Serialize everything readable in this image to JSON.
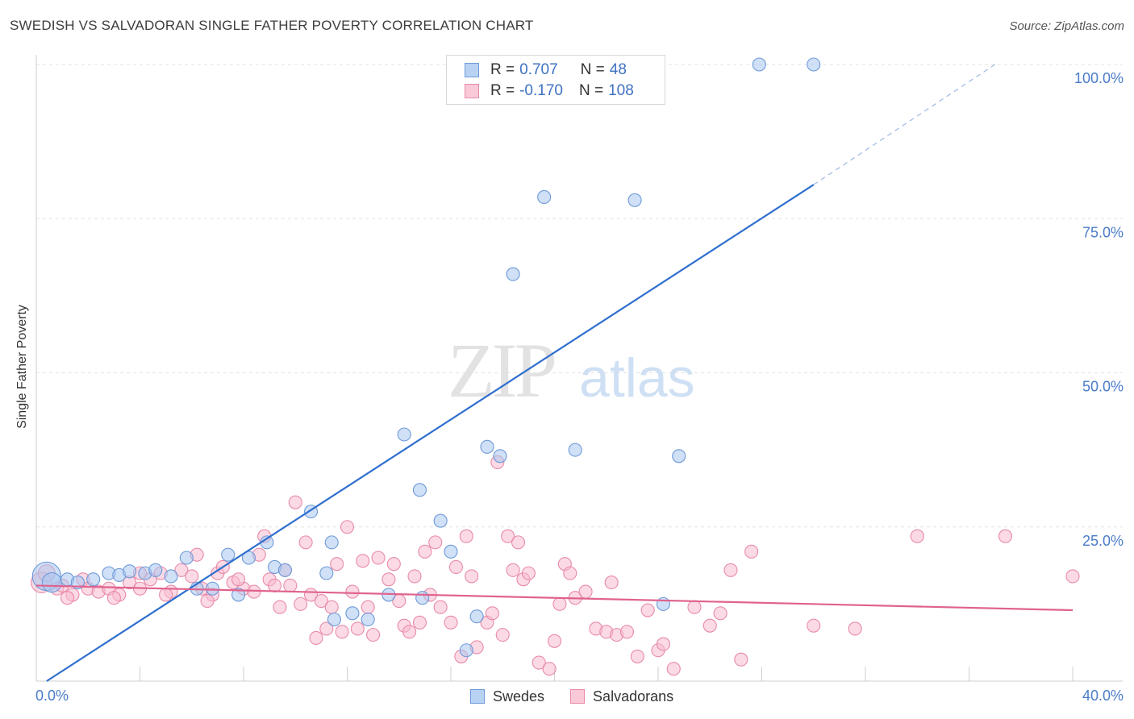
{
  "header": {
    "title": "SWEDISH VS SALVADORAN SINGLE FATHER POVERTY CORRELATION CHART",
    "source": "Source: ZipAtlas.com"
  },
  "watermark": {
    "zip": "ZIP",
    "atlas": "atlas"
  },
  "legend": {
    "rows": [
      {
        "r_label": "R =",
        "r_value": "0.707",
        "n_label": "N =",
        "n_value": "48",
        "color": "#a8c6f0",
        "border": "#6e9ad8"
      },
      {
        "r_label": "R =",
        "r_value": "-0.170",
        "n_label": "N =",
        "n_value": "108",
        "color": "#f7bccf",
        "border": "#e88aa9"
      }
    ]
  },
  "bottom_legend": {
    "items": [
      {
        "label": "Swedes",
        "color": "#b8d2f4",
        "border": "#6e9ad8"
      },
      {
        "label": "Salvadorans",
        "color": "#f9c9d8",
        "border": "#e88aa9"
      }
    ]
  },
  "chart_data": {
    "type": "scatter",
    "title": "SWEDISH VS SALVADORAN SINGLE FATHER POVERTY CORRELATION CHART",
    "xlabel": "",
    "ylabel": "Single Father Poverty",
    "xlim": [
      0,
      40
    ],
    "ylim": [
      0,
      100
    ],
    "x_ticks_labels": [
      "0.0%",
      "40.0%"
    ],
    "y_ticks": [
      25,
      50,
      75,
      100
    ],
    "y_tick_labels": [
      "25.0%",
      "50.0%",
      "75.0%",
      "100.0%"
    ],
    "grid": true,
    "legend_position": "top-center",
    "colors": {
      "swedes_fill": "#a8c6f0",
      "swedes_stroke": "#6e9ad8",
      "swedes_line": "#2f6fce",
      "salv_fill": "#f7bccf",
      "salv_stroke": "#e88aa9",
      "salv_line": "#e0628e"
    },
    "series": [
      {
        "name": "Swedes",
        "points": [
          [
            0.4,
            17.0,
            2.2
          ],
          [
            0.6,
            16.0,
            1.5
          ],
          [
            1.2,
            16.5,
            1
          ],
          [
            1.6,
            16.0,
            1
          ],
          [
            2.2,
            16.5,
            1
          ],
          [
            2.8,
            17.5,
            1
          ],
          [
            3.2,
            17.2,
            1
          ],
          [
            3.6,
            17.8,
            1
          ],
          [
            4.2,
            17.5,
            1
          ],
          [
            4.6,
            18.0,
            1
          ],
          [
            5.2,
            17.0,
            1
          ],
          [
            5.8,
            20.0,
            1
          ],
          [
            6.2,
            15.0,
            1
          ],
          [
            6.8,
            15.0,
            1
          ],
          [
            7.4,
            20.5,
            1
          ],
          [
            7.8,
            14.0,
            1
          ],
          [
            8.2,
            20.0,
            1
          ],
          [
            8.9,
            22.5,
            1
          ],
          [
            9.2,
            18.5,
            1
          ],
          [
            9.6,
            18.0,
            1
          ],
          [
            10.6,
            27.5,
            1
          ],
          [
            11.2,
            17.5,
            1
          ],
          [
            11.4,
            22.5,
            1
          ],
          [
            11.5,
            10.0,
            1
          ],
          [
            12.2,
            11.0,
            1
          ],
          [
            12.8,
            10.0,
            1
          ],
          [
            13.6,
            14.0,
            1
          ],
          [
            14.2,
            40.0,
            1
          ],
          [
            14.8,
            31.0,
            1
          ],
          [
            14.9,
            13.5,
            1
          ],
          [
            15.6,
            26.0,
            1
          ],
          [
            16.0,
            21.0,
            1
          ],
          [
            16.6,
            5.0,
            1
          ],
          [
            17.0,
            10.5,
            1
          ],
          [
            17.4,
            38.0,
            1
          ],
          [
            17.9,
            36.5,
            1
          ],
          [
            18.4,
            66.0,
            1
          ],
          [
            18.8,
            100.0,
            1
          ],
          [
            19.6,
            78.5,
            1
          ],
          [
            20.8,
            37.5,
            1
          ],
          [
            22.0,
            100.0,
            1
          ],
          [
            23.1,
            78.0,
            1
          ],
          [
            23.2,
            100.0,
            1
          ],
          [
            24.2,
            12.5,
            1
          ],
          [
            24.8,
            36.5,
            1
          ],
          [
            27.9,
            100.0,
            1
          ],
          [
            30.0,
            100.0,
            1
          ],
          [
            22.6,
            100.0,
            1
          ]
        ],
        "trend": {
          "x": [
            0.4,
            30.0
          ],
          "y": [
            0.0,
            80.5
          ],
          "dashed_to": [
            37.0,
            100.0
          ]
        }
      },
      {
        "name": "Salvadorans",
        "points": [
          [
            0.2,
            16.0,
            1.6
          ],
          [
            0.4,
            17.5,
            1.3
          ],
          [
            0.8,
            15.0,
            1
          ],
          [
            1.0,
            15.5,
            1
          ],
          [
            1.4,
            14.0,
            1
          ],
          [
            1.8,
            16.5,
            1
          ],
          [
            2.0,
            15.0,
            1
          ],
          [
            2.4,
            14.5,
            1
          ],
          [
            2.8,
            15.0,
            1
          ],
          [
            3.2,
            14.0,
            1
          ],
          [
            3.6,
            16.0,
            1
          ],
          [
            4.0,
            15.0,
            1
          ],
          [
            4.4,
            16.5,
            1
          ],
          [
            4.8,
            17.5,
            1
          ],
          [
            5.2,
            14.5,
            1
          ],
          [
            5.6,
            18.0,
            1
          ],
          [
            6.0,
            17.0,
            1
          ],
          [
            6.2,
            20.5,
            1
          ],
          [
            6.4,
            15.0,
            1
          ],
          [
            6.8,
            14.0,
            1
          ],
          [
            7.0,
            17.5,
            1
          ],
          [
            7.2,
            18.5,
            1
          ],
          [
            7.6,
            16.0,
            1
          ],
          [
            8.0,
            15.0,
            1
          ],
          [
            8.4,
            14.5,
            1
          ],
          [
            8.6,
            20.5,
            1
          ],
          [
            8.8,
            23.5,
            1
          ],
          [
            9.0,
            16.5,
            1
          ],
          [
            9.2,
            15.5,
            1
          ],
          [
            9.4,
            12.0,
            1
          ],
          [
            9.6,
            18.0,
            1
          ],
          [
            10.0,
            29.0,
            1
          ],
          [
            10.4,
            22.5,
            1
          ],
          [
            10.6,
            14.0,
            1
          ],
          [
            10.8,
            7.0,
            1
          ],
          [
            11.0,
            13.0,
            1
          ],
          [
            11.2,
            8.5,
            1
          ],
          [
            11.4,
            12.0,
            1
          ],
          [
            11.6,
            19.0,
            1
          ],
          [
            11.8,
            8.0,
            1
          ],
          [
            12.0,
            25.0,
            1
          ],
          [
            12.4,
            8.5,
            1
          ],
          [
            12.6,
            19.5,
            1
          ],
          [
            12.8,
            12.0,
            1
          ],
          [
            13.0,
            7.5,
            1
          ],
          [
            13.2,
            20.0,
            1
          ],
          [
            13.6,
            16.5,
            1
          ],
          [
            13.8,
            19.0,
            1
          ],
          [
            14.0,
            13.0,
            1
          ],
          [
            14.2,
            9.0,
            1
          ],
          [
            14.4,
            8.0,
            1
          ],
          [
            14.6,
            17.0,
            1
          ],
          [
            14.8,
            9.5,
            1
          ],
          [
            15.0,
            21.0,
            1
          ],
          [
            15.4,
            22.5,
            1
          ],
          [
            15.6,
            12.0,
            1
          ],
          [
            16.0,
            9.5,
            1
          ],
          [
            16.2,
            18.5,
            1
          ],
          [
            16.4,
            4.0,
            1
          ],
          [
            16.6,
            23.5,
            1
          ],
          [
            16.8,
            17.0,
            1
          ],
          [
            17.0,
            5.5,
            1
          ],
          [
            17.4,
            9.5,
            1
          ],
          [
            17.6,
            11.0,
            1
          ],
          [
            17.8,
            35.5,
            1
          ],
          [
            18.0,
            7.5,
            1
          ],
          [
            18.2,
            23.5,
            1
          ],
          [
            18.4,
            18.0,
            1
          ],
          [
            18.6,
            22.5,
            1
          ],
          [
            18.8,
            16.5,
            1
          ],
          [
            19.0,
            17.5,
            1
          ],
          [
            19.4,
            3.0,
            1
          ],
          [
            19.8,
            2.0,
            1
          ],
          [
            20.0,
            6.5,
            1
          ],
          [
            20.4,
            19.0,
            1
          ],
          [
            20.6,
            17.5,
            1
          ],
          [
            20.8,
            13.5,
            1
          ],
          [
            21.2,
            14.5,
            1
          ],
          [
            21.6,
            8.5,
            1
          ],
          [
            22.0,
            8.0,
            1
          ],
          [
            22.4,
            7.5,
            1
          ],
          [
            22.8,
            8.0,
            1
          ],
          [
            23.2,
            4.0,
            1
          ],
          [
            23.6,
            11.5,
            1
          ],
          [
            24.0,
            5.0,
            1
          ],
          [
            24.2,
            6.0,
            1
          ],
          [
            24.6,
            2.0,
            1
          ],
          [
            25.4,
            12.0,
            1
          ],
          [
            26.0,
            9.0,
            1
          ],
          [
            26.4,
            11.0,
            1
          ],
          [
            26.8,
            18.0,
            1
          ],
          [
            27.2,
            3.5,
            1
          ],
          [
            27.6,
            21.0,
            1
          ],
          [
            30.0,
            9.0,
            1
          ],
          [
            31.6,
            8.5,
            1
          ],
          [
            34.0,
            23.5,
            1
          ],
          [
            37.4,
            23.5,
            1
          ],
          [
            40.0,
            17.0,
            1
          ],
          [
            3.0,
            13.5,
            1
          ],
          [
            5.0,
            14.0,
            1
          ],
          [
            7.8,
            16.5,
            1
          ],
          [
            9.8,
            15.5,
            1
          ],
          [
            12.2,
            14.5,
            1
          ],
          [
            15.2,
            14.0,
            1
          ],
          [
            20.2,
            12.5,
            1
          ],
          [
            22.2,
            16.0,
            1
          ],
          [
            1.2,
            13.5,
            1
          ],
          [
            4.0,
            17.5,
            1
          ],
          [
            6.6,
            13.0,
            1
          ],
          [
            10.2,
            12.5,
            1
          ]
        ],
        "trend": {
          "x": [
            0.0,
            40.0
          ],
          "y": [
            15.5,
            11.5
          ]
        }
      }
    ]
  }
}
